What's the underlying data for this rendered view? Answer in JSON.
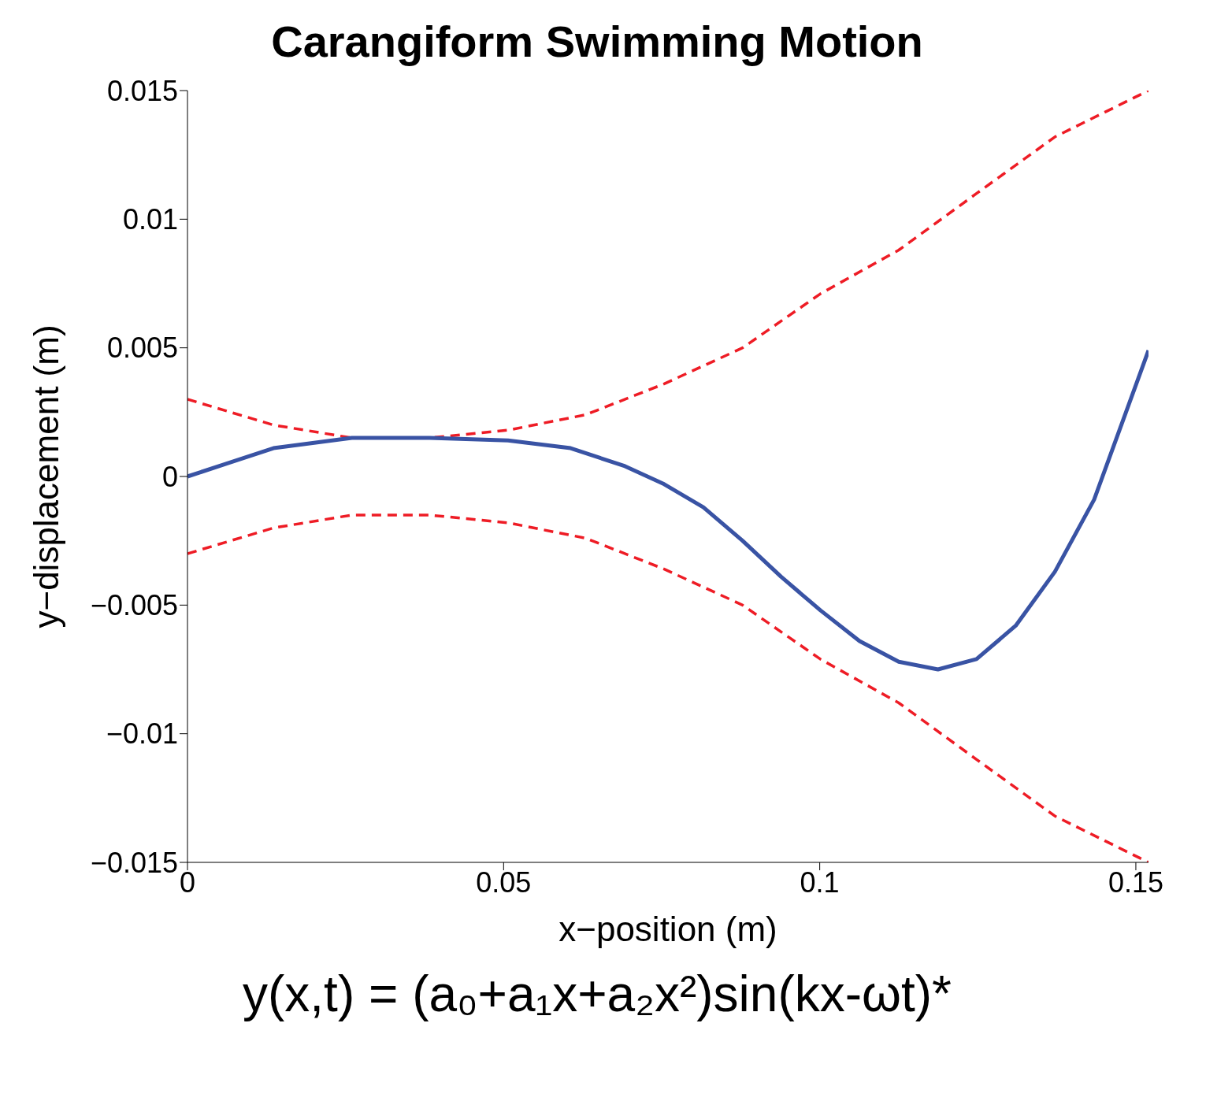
{
  "chart_data": {
    "type": "line",
    "title": "Carangiform Swimming Motion",
    "xlabel": "x−position (m)",
    "ylabel": "y−displacement (m)",
    "annotations": [
      "y(x,t) = (a₀+a₁x+a₂x²)sin(kx-ωt)*"
    ],
    "xlim": [
      0,
      0.152
    ],
    "xticks": [
      0,
      0.05,
      0.1,
      0.15
    ],
    "ylim": [
      -0.015,
      0.015
    ],
    "yticks": [
      -0.015,
      -0.01,
      -0.005,
      0,
      0.005,
      0.01,
      0.015
    ],
    "grid": false,
    "legend": false,
    "marker": "none",
    "series": [
      {
        "color": "#ee1c25",
        "line_style": "dashed",
        "x": [
          0,
          0.0136,
          0.026,
          0.0383,
          0.0507,
          0.063,
          0.0754,
          0.0878,
          0.1001,
          0.1125,
          0.1248,
          0.1372,
          0.152
        ],
        "values": [
          0.003,
          0.002,
          0.0015,
          0.0015,
          0.0018,
          0.0024,
          0.0036,
          0.005,
          0.0071,
          0.0088,
          0.011,
          0.0132,
          0.015
        ]
      },
      {
        "color": "#ee1c25",
        "line_style": "dashed",
        "x": [
          0,
          0.0136,
          0.026,
          0.0383,
          0.0507,
          0.063,
          0.0754,
          0.0878,
          0.1001,
          0.1125,
          0.1248,
          0.1372,
          0.152
        ],
        "values": [
          -0.003,
          -0.002,
          -0.0015,
          -0.0015,
          -0.0018,
          -0.0024,
          -0.0036,
          -0.005,
          -0.0071,
          -0.0088,
          -0.011,
          -0.0132,
          -0.015
        ]
      },
      {
        "color": "#3953a4",
        "line_style": "solid",
        "x": [
          0,
          0.0062,
          0.0136,
          0.026,
          0.0383,
          0.0507,
          0.0606,
          0.0692,
          0.0754,
          0.0816,
          0.0878,
          0.0939,
          0.1001,
          0.1063,
          0.1125,
          0.1187,
          0.1248,
          0.131,
          0.1372,
          0.1434,
          0.152
        ],
        "values": [
          0,
          0.0005,
          0.0011,
          0.0015,
          0.0015,
          0.0014,
          0.0011,
          0.0004,
          -0.0003,
          -0.0012,
          -0.0025,
          -0.0039,
          -0.0052,
          -0.0064,
          -0.0072,
          -0.0075,
          -0.0071,
          -0.0058,
          -0.0037,
          -0.0009,
          0.0049
        ]
      }
    ]
  }
}
